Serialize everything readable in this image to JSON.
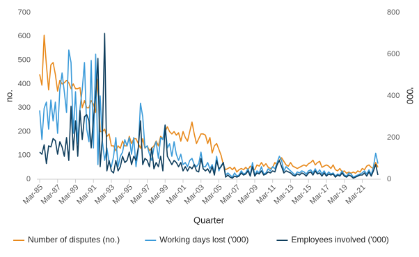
{
  "chart_data": {
    "type": "line",
    "x_label": "Quarter",
    "y_label": "no.",
    "y2_label": "'000",
    "categories": [
      "Mar-85",
      null,
      null,
      null,
      null,
      null,
      null,
      null,
      "Mar-87",
      null,
      null,
      null,
      null,
      null,
      null,
      null,
      "Mar-89",
      null,
      null,
      null,
      null,
      null,
      null,
      null,
      "Mar-91",
      null,
      null,
      null,
      null,
      null,
      null,
      null,
      "Mar-93",
      null,
      null,
      null,
      null,
      null,
      null,
      null,
      "Mar-95",
      null,
      null,
      null,
      null,
      null,
      null,
      null,
      "Mar-97",
      null,
      null,
      null,
      null,
      null,
      null,
      null,
      "Mar-99",
      null,
      null,
      null,
      null,
      null,
      null,
      null,
      "Mar-01",
      null,
      null,
      null,
      null,
      null,
      null,
      null,
      "Mar-03",
      null,
      null,
      null,
      null,
      null,
      null,
      null,
      "Mar-05",
      null,
      null,
      null,
      null,
      null,
      null,
      null,
      "Mar-07",
      null,
      null,
      null,
      null,
      null,
      null,
      null,
      "Mar-09",
      null,
      null,
      null,
      null,
      null,
      null,
      null,
      "Mar-11",
      null,
      null,
      null,
      null,
      null,
      null,
      null,
      "Mar-13",
      null,
      null,
      null,
      null,
      null,
      null,
      null,
      "Mar-15",
      null,
      null,
      null,
      null,
      null,
      null,
      null,
      "Mar-17",
      null,
      null,
      null,
      null,
      null,
      null,
      null,
      "Mar-19",
      null,
      null,
      null,
      null,
      null,
      null,
      null,
      "Mar-21",
      null,
      null,
      null,
      null,
      null,
      null,
      null
    ],
    "ylim": [
      0,
      700
    ],
    "yticks": [
      0,
      100,
      200,
      300,
      400,
      500,
      600,
      700
    ],
    "y2lim": [
      0,
      800
    ],
    "y2ticks": [
      0,
      200,
      400,
      600,
      800
    ],
    "grid": false,
    "legend": "bottom",
    "series": [
      {
        "name": "Number of disputes (no.)",
        "color": "#e8891b",
        "axis": "y",
        "values": [
          440,
          395,
          605,
          480,
          375,
          480,
          490,
          440,
          370,
          415,
          400,
          405,
          415,
          405,
          380,
          400,
          380,
          380,
          385,
          300,
          330,
          300,
          300,
          330,
          315,
          280,
          420,
          200,
          200,
          210,
          180,
          190,
          140,
          140,
          120,
          140,
          130,
          160,
          140,
          140,
          180,
          150,
          170,
          170,
          150,
          130,
          170,
          130,
          140,
          120,
          130,
          140,
          160,
          140,
          180,
          170,
          200,
          220,
          200,
          190,
          200,
          185,
          195,
          160,
          200,
          175,
          160,
          200,
          240,
          190,
          150,
          170,
          190,
          190,
          185,
          150,
          175,
          110,
          140,
          150,
          125,
          100,
          60,
          40,
          45,
          50,
          40,
          50,
          30,
          40,
          45,
          40,
          50,
          40,
          55,
          45,
          40,
          60,
          55,
          70,
          55,
          65,
          50,
          45,
          50,
          70,
          60,
          80,
          90,
          75,
          60,
          55,
          70,
          55,
          50,
          45,
          50,
          55,
          60,
          55,
          65,
          70,
          80,
          60,
          70,
          75,
          50,
          55,
          60,
          55,
          45,
          60,
          40,
          35,
          45,
          30,
          35,
          25,
          30,
          25,
          30,
          25,
          35,
          30,
          45,
          40,
          55,
          60,
          50,
          45,
          70,
          50
        ]
      },
      {
        "name": "Working days lost ('000)",
        "color": "#3a9ad9",
        "axis": "y2",
        "values": [
          330,
          190,
          340,
          370,
          240,
          380,
          280,
          370,
          220,
          430,
          510,
          420,
          320,
          620,
          560,
          220,
          420,
          170,
          340,
          430,
          560,
          240,
          180,
          570,
          150,
          600,
          70,
          400,
          180,
          90,
          150,
          80,
          60,
          110,
          200,
          60,
          110,
          130,
          190,
          160,
          200,
          120,
          200,
          60,
          140,
          365,
          300,
          150,
          160,
          120,
          90,
          150,
          180,
          100,
          200,
          190,
          260,
          150,
          170,
          110,
          180,
          120,
          90,
          120,
          70,
          80,
          60,
          90,
          100,
          70,
          60,
          75,
          130,
          60,
          60,
          80,
          50,
          70,
          30,
          110,
          40,
          65,
          80,
          20,
          30,
          20,
          10,
          30,
          15,
          20,
          40,
          25,
          30,
          50,
          20,
          80,
          20,
          40,
          30,
          60,
          25,
          30,
          50,
          40,
          60,
          50,
          80,
          110,
          90,
          40,
          60,
          50,
          40,
          30,
          20,
          35,
          30,
          40,
          35,
          25,
          40,
          45,
          30,
          50,
          30,
          45,
          25,
          40,
          20,
          35,
          25,
          30,
          15,
          25,
          20,
          40,
          20,
          15,
          30,
          25,
          10,
          15,
          20,
          25,
          30,
          40,
          25,
          45,
          20,
          60,
          125,
          75
        ]
      },
      {
        "name": "Employees involved ('000)",
        "color": "#0e3d5c",
        "axis": "y2",
        "values": [
          130,
          120,
          165,
          75,
          160,
          155,
          195,
          185,
          120,
          180,
          155,
          110,
          200,
          90,
          350,
          140,
          280,
          110,
          330,
          190,
          300,
          310,
          280,
          150,
          290,
          400,
          580,
          60,
          200,
          700,
          40,
          90,
          40,
          30,
          90,
          40,
          60,
          110,
          80,
          90,
          130,
          70,
          110,
          90,
          150,
          280,
          70,
          100,
          90,
          60,
          150,
          50,
          80,
          60,
          110,
          40,
          260,
          110,
          90,
          70,
          90,
          80,
          60,
          80,
          40,
          60,
          40,
          60,
          50,
          70,
          40,
          35,
          100,
          50,
          40,
          50,
          30,
          60,
          20,
          90,
          50,
          60,
          80,
          10,
          20,
          10,
          5,
          15,
          10,
          15,
          30,
          20,
          25,
          40,
          15,
          60,
          15,
          30,
          25,
          40,
          20,
          25,
          35,
          30,
          40,
          35,
          70,
          90,
          60,
          30,
          40,
          35,
          30,
          20,
          15,
          25,
          20,
          30,
          25,
          15,
          30,
          35,
          20,
          40,
          25,
          30,
          15,
          30,
          15,
          25,
          20,
          25,
          10,
          20,
          15,
          30,
          15,
          10,
          20,
          15,
          5,
          10,
          15,
          20,
          20,
          30,
          15,
          35,
          15,
          40,
          70,
          20
        ]
      }
    ]
  }
}
